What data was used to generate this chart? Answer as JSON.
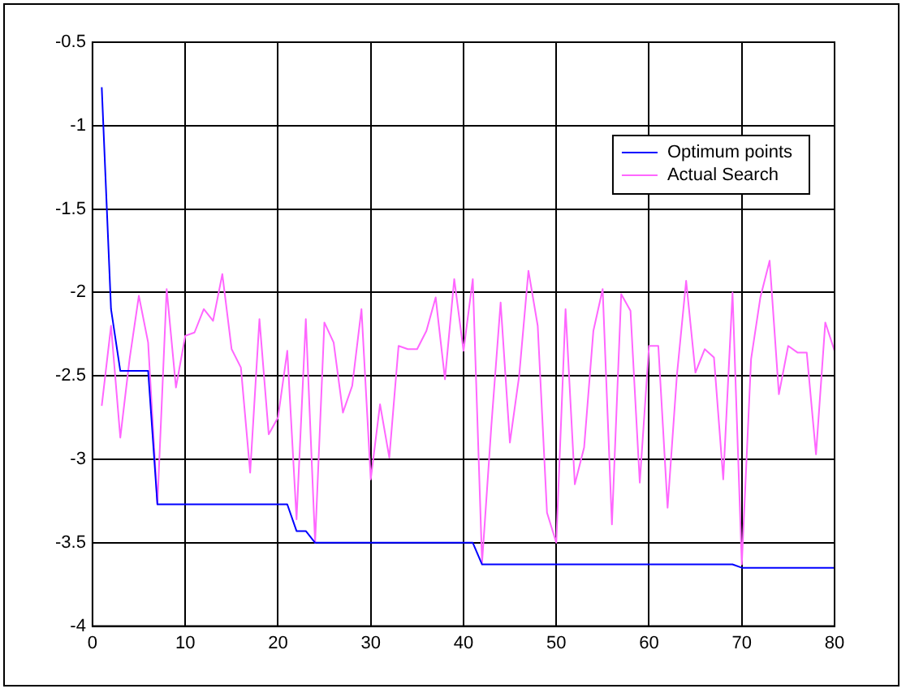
{
  "chart_data": {
    "type": "line",
    "xlim": [
      0,
      80
    ],
    "ylim": [
      -4,
      -0.5
    ],
    "xticks": [
      0,
      10,
      20,
      30,
      40,
      50,
      60,
      70,
      80
    ],
    "yticks": [
      -4,
      -3.5,
      -3,
      -2.5,
      -2,
      -1.5,
      -1,
      -0.5
    ],
    "grid": true,
    "legend": "top right",
    "marker": "none",
    "line_style": "solid",
    "series": [
      {
        "name": "Optimum points",
        "color": "#0000ff",
        "x": [
          1,
          2,
          3,
          6,
          7,
          21,
          22,
          23,
          24,
          41,
          42,
          69,
          70,
          80
        ],
        "values": [
          -0.77,
          -2.1,
          -2.47,
          -2.47,
          -3.27,
          -3.27,
          -3.43,
          -3.43,
          -3.5,
          -3.5,
          -3.63,
          -3.63,
          -3.65,
          -3.65
        ]
      },
      {
        "name": "Actual Search",
        "color": "#ff66ff",
        "x": [
          1,
          2,
          3,
          4,
          5,
          6,
          7,
          8,
          9,
          10,
          11,
          12,
          13,
          14,
          15,
          16,
          17,
          18,
          19,
          20,
          21,
          22,
          23,
          24,
          25,
          26,
          27,
          28,
          29,
          30,
          31,
          32,
          33,
          34,
          35,
          36,
          37,
          38,
          39,
          40,
          41,
          42,
          43,
          44,
          45,
          46,
          47,
          48,
          49,
          50,
          51,
          52,
          53,
          54,
          55,
          56,
          57,
          58,
          59,
          60,
          61,
          62,
          63,
          64,
          65,
          66,
          67,
          68,
          69,
          70,
          71,
          72,
          73,
          74,
          75,
          76,
          77,
          78,
          79,
          80
        ],
        "values": [
          -2.68,
          -2.2,
          -2.87,
          -2.4,
          -2.02,
          -2.3,
          -3.27,
          -1.98,
          -2.57,
          -2.26,
          -2.24,
          -2.1,
          -2.17,
          -1.89,
          -2.34,
          -2.45,
          -3.08,
          -2.16,
          -2.85,
          -2.75,
          -2.35,
          -3.36,
          -2.16,
          -3.5,
          -2.18,
          -2.3,
          -2.72,
          -2.56,
          -2.1,
          -3.12,
          -2.67,
          -2.99,
          -2.32,
          -2.34,
          -2.34,
          -2.23,
          -2.03,
          -2.52,
          -1.92,
          -2.35,
          -1.92,
          -3.62,
          -2.8,
          -2.06,
          -2.9,
          -2.5,
          -1.87,
          -2.2,
          -3.32,
          -3.5,
          -2.1,
          -3.15,
          -2.93,
          -2.23,
          -1.98,
          -3.39,
          -2.01,
          -2.11,
          -3.14,
          -2.32,
          -2.32,
          -3.29,
          -2.5,
          -1.93,
          -2.48,
          -2.34,
          -2.39,
          -3.12,
          -2.0,
          -3.63,
          -2.4,
          -2.03,
          -1.81,
          -2.61,
          -2.32,
          -2.36,
          -2.36,
          -2.97,
          -2.18,
          -2.35
        ]
      }
    ]
  }
}
